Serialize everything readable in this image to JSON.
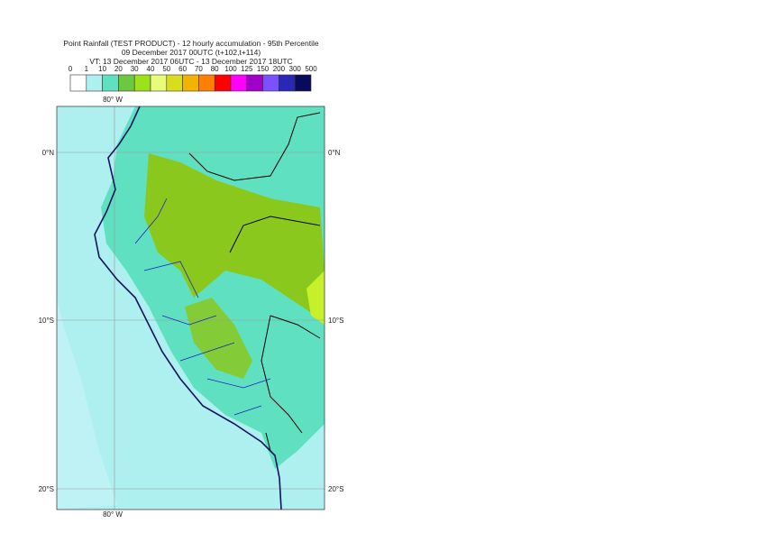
{
  "header": {
    "lines": [
      "Point Rainfall (TEST PRODUCT) - 12 hourly accumulation - 95th Percentile",
      "09 December 2017 00UTC (t+102,t+114)",
      "VT: 13 December 2017 06UTC - 13 December 2017 18UTC"
    ]
  },
  "legend": {
    "labels": [
      "0",
      "1",
      "10",
      "20",
      "30",
      "40",
      "50",
      "60",
      "70",
      "80",
      "100",
      "125",
      "150",
      "200",
      "300",
      "500"
    ],
    "colors": [
      "#ffffff",
      "#aef0f0",
      "#5fe0c0",
      "#6cc83c",
      "#9be21a",
      "#e9fb7a",
      "#d9de1c",
      "#f2b400",
      "#ff8000",
      "#ff0000",
      "#ff00ff",
      "#a000c8",
      "#7a50ff",
      "#2828b4",
      "#0a0a5a"
    ]
  },
  "map": {
    "lon_label": "80° W",
    "lat_labels": [
      "0°N",
      "10°S",
      "20°S"
    ]
  }
}
